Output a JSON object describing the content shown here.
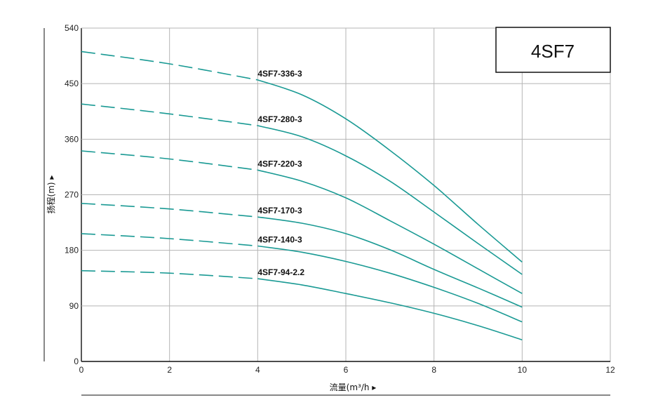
{
  "chart_data": {
    "type": "line",
    "title": "4SF7",
    "xlabel": "流量(m³/h ▸",
    "ylabel": "扬程(m) ▸",
    "xlim": [
      0,
      12
    ],
    "ylim": [
      0,
      540
    ],
    "xticks": [
      0,
      2,
      4,
      6,
      8,
      10,
      12
    ],
    "yticks": [
      0,
      90,
      180,
      270,
      360,
      450,
      540
    ],
    "grid": true,
    "line_color": "#1a9a94",
    "dashed_segment_x_range": [
      0,
      4
    ],
    "series": [
      {
        "name": "4SF7-336-3",
        "x": [
          0,
          2,
          4,
          5,
          6,
          7,
          8,
          9,
          10
        ],
        "y": [
          502,
          482,
          456,
          432,
          393,
          342,
          285,
          222,
          161
        ]
      },
      {
        "name": "4SF7-280-3",
        "x": [
          0,
          2,
          4,
          5,
          6,
          7,
          8,
          9,
          10
        ],
        "y": [
          417,
          401,
          382,
          364,
          333,
          292,
          242,
          191,
          141
        ]
      },
      {
        "name": "4SF7-220-3",
        "x": [
          0,
          2,
          4,
          5,
          6,
          7,
          8,
          9,
          10
        ],
        "y": [
          341,
          328,
          310,
          292,
          265,
          228,
          190,
          150,
          110
        ]
      },
      {
        "name": "4SF7-170-3",
        "x": [
          0,
          2,
          4,
          5,
          6,
          7,
          8,
          9,
          10
        ],
        "y": [
          256,
          247,
          234,
          224,
          207,
          181,
          149,
          119,
          88
        ]
      },
      {
        "name": "4SF7-140-3",
        "x": [
          0,
          2,
          4,
          5,
          6,
          7,
          8,
          9,
          10
        ],
        "y": [
          207,
          199,
          187,
          177,
          162,
          143,
          120,
          94,
          64
        ]
      },
      {
        "name": "4SF7-94-2.2",
        "x": [
          0,
          2,
          4,
          5,
          6,
          7,
          8,
          9,
          10
        ],
        "y": [
          147,
          143,
          134,
          124,
          110,
          95,
          78,
          58,
          35
        ]
      }
    ]
  }
}
